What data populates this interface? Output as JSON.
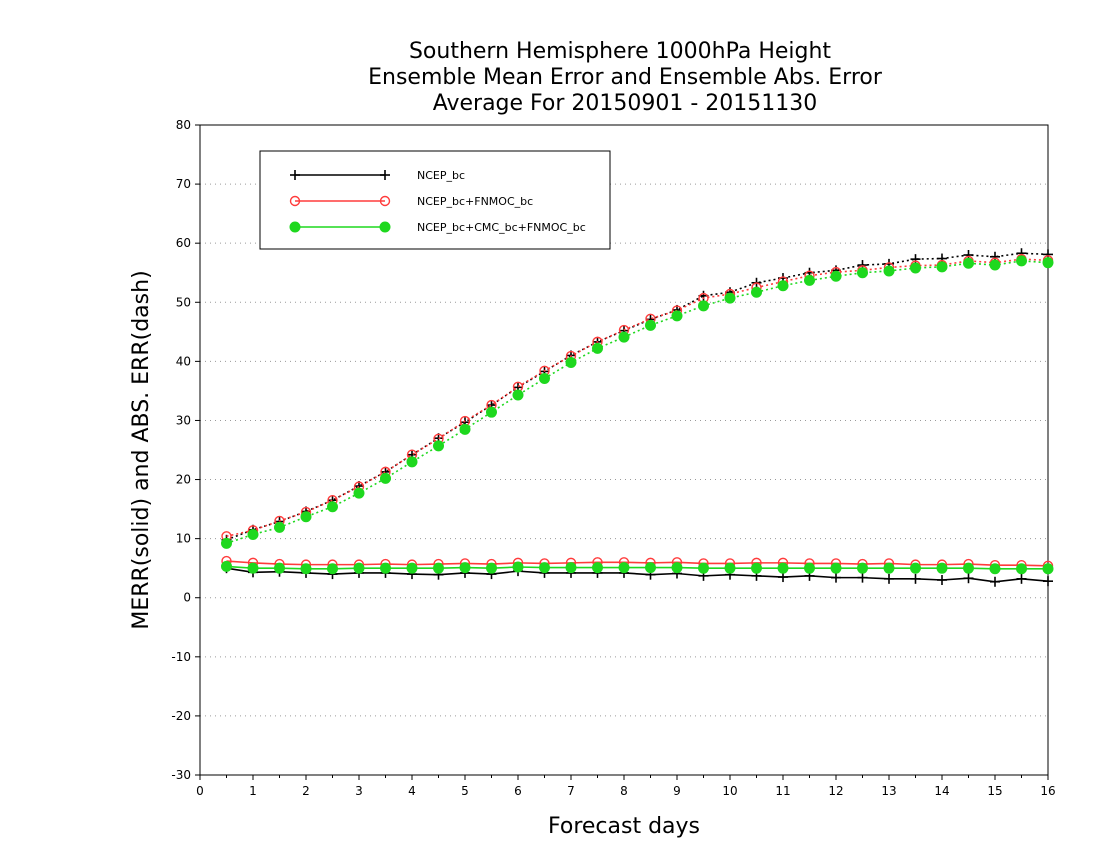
{
  "chart_data": {
    "type": "line",
    "title_lines": [
      "Southern Hemisphere 1000hPa Height",
      "Ensemble Mean Error and Ensemble Abs. Error",
      "Average For 20150901 - 20151130"
    ],
    "xlabel": "Forecast days",
    "ylabel": "MERR(solid) and ABS. ERR(dash)",
    "xlim": [
      0,
      16
    ],
    "ylim": [
      -30,
      80
    ],
    "xticks": [
      "0",
      "1",
      "2",
      "3",
      "4",
      "5",
      "6",
      "7",
      "8",
      "9",
      "10",
      "11",
      "12",
      "13",
      "14",
      "15",
      "16"
    ],
    "yticks": [
      "-30",
      "-20",
      "-10",
      "0",
      "10",
      "20",
      "30",
      "40",
      "50",
      "60",
      "70",
      "80"
    ],
    "grid": true,
    "legend_position": "top-left",
    "x": [
      0.5,
      1,
      1.5,
      2,
      2.5,
      3,
      3.5,
      4,
      4.5,
      5,
      5.5,
      6,
      6.5,
      7,
      7.5,
      8,
      8.5,
      9,
      9.5,
      10,
      10.5,
      11,
      11.5,
      12,
      12.5,
      13,
      13.5,
      14,
      14.5,
      15,
      15.5,
      16
    ],
    "series": [
      {
        "name": "NCEP_bc",
        "color": "#000000",
        "marker": "plus",
        "merr": [
          5.0,
          4.3,
          4.4,
          4.2,
          4.0,
          4.2,
          4.2,
          4.0,
          3.9,
          4.2,
          4.0,
          4.5,
          4.2,
          4.2,
          4.2,
          4.2,
          3.9,
          4.1,
          3.7,
          3.9,
          3.7,
          3.5,
          3.7,
          3.4,
          3.4,
          3.2,
          3.2,
          3.0,
          3.3,
          2.7,
          3.2,
          2.8
        ],
        "abs_err": [
          9.8,
          11.5,
          12.9,
          14.6,
          16.5,
          18.9,
          21.3,
          24.2,
          27.0,
          29.7,
          32.6,
          35.6,
          38.3,
          41.0,
          43.3,
          45.2,
          47.1,
          48.7,
          51.1,
          51.7,
          53.3,
          54.1,
          55.0,
          55.4,
          56.3,
          56.5,
          57.3,
          57.4,
          58.0,
          57.7,
          58.3,
          58.1
        ]
      },
      {
        "name": "NCEP_bc+FNMOC_bc",
        "color": "#ff3b3b",
        "marker": "open-circle",
        "merr": [
          6.2,
          5.9,
          5.7,
          5.6,
          5.6,
          5.6,
          5.7,
          5.6,
          5.7,
          5.8,
          5.7,
          5.9,
          5.8,
          5.9,
          6.0,
          6.0,
          5.9,
          6.0,
          5.8,
          5.8,
          5.9,
          5.9,
          5.8,
          5.8,
          5.7,
          5.8,
          5.6,
          5.6,
          5.7,
          5.5,
          5.5,
          5.4
        ],
        "abs_err": [
          10.4,
          11.4,
          13.0,
          14.5,
          16.5,
          18.8,
          21.3,
          24.2,
          26.9,
          29.9,
          32.6,
          35.7,
          38.4,
          40.9,
          43.3,
          45.3,
          47.2,
          48.6,
          50.7,
          51.4,
          52.5,
          53.5,
          54.5,
          55.1,
          55.4,
          55.9,
          56.2,
          56.3,
          57.0,
          56.7,
          57.3,
          57.1
        ]
      },
      {
        "name": "NCEP_bc+CMC_bc+FNMOC_bc",
        "color": "#1ed81e",
        "marker": "filled-circle",
        "merr": [
          5.3,
          5.0,
          5.0,
          4.9,
          4.9,
          5.0,
          5.0,
          5.0,
          5.0,
          5.1,
          5.0,
          5.2,
          5.1,
          5.1,
          5.1,
          5.1,
          5.1,
          5.1,
          5.0,
          5.0,
          5.0,
          5.0,
          5.0,
          5.0,
          5.0,
          5.0,
          5.0,
          5.0,
          5.0,
          4.9,
          4.9,
          4.9
        ],
        "abs_err": [
          9.2,
          10.7,
          11.9,
          13.7,
          15.4,
          17.7,
          20.2,
          23.0,
          25.7,
          28.5,
          31.4,
          34.3,
          37.1,
          39.8,
          42.2,
          44.1,
          46.1,
          47.7,
          49.4,
          50.7,
          51.7,
          52.8,
          53.7,
          54.4,
          55.0,
          55.3,
          55.8,
          56.0,
          56.6,
          56.3,
          57.0,
          56.7
        ]
      }
    ]
  }
}
